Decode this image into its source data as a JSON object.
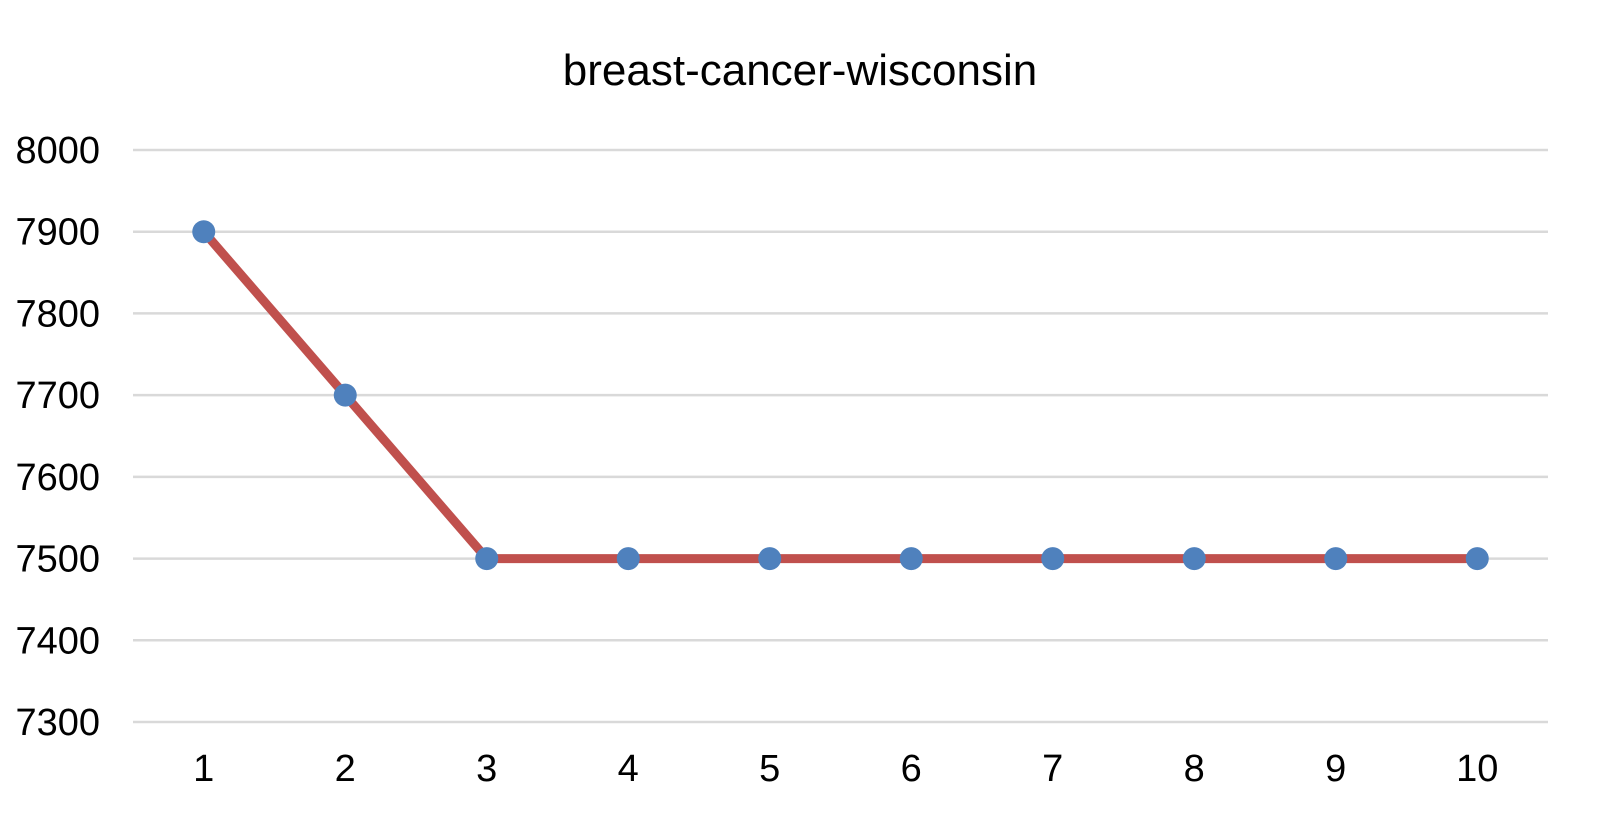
{
  "chart_data": {
    "type": "line",
    "title": "breast-cancer-wisconsin",
    "categories": [
      1,
      2,
      3,
      4,
      5,
      6,
      7,
      8,
      9,
      10
    ],
    "values": [
      7900,
      7700,
      7500,
      7500,
      7500,
      7500,
      7500,
      7500,
      7500,
      7500
    ],
    "xlabel": "",
    "ylabel": "",
    "ylim": [
      7300,
      8000
    ],
    "yticks": [
      8000,
      7900,
      7800,
      7700,
      7600,
      7500,
      7400,
      7300
    ],
    "ytick_step": 100,
    "grid": "horizontal-only",
    "legend_position": "none",
    "marker_shape": "circle",
    "colors": {
      "line": "#C0504D",
      "marker": "#4F81BD",
      "gridline": "#D9D9D9",
      "text": "#000000",
      "background": "#FFFFFF"
    }
  }
}
